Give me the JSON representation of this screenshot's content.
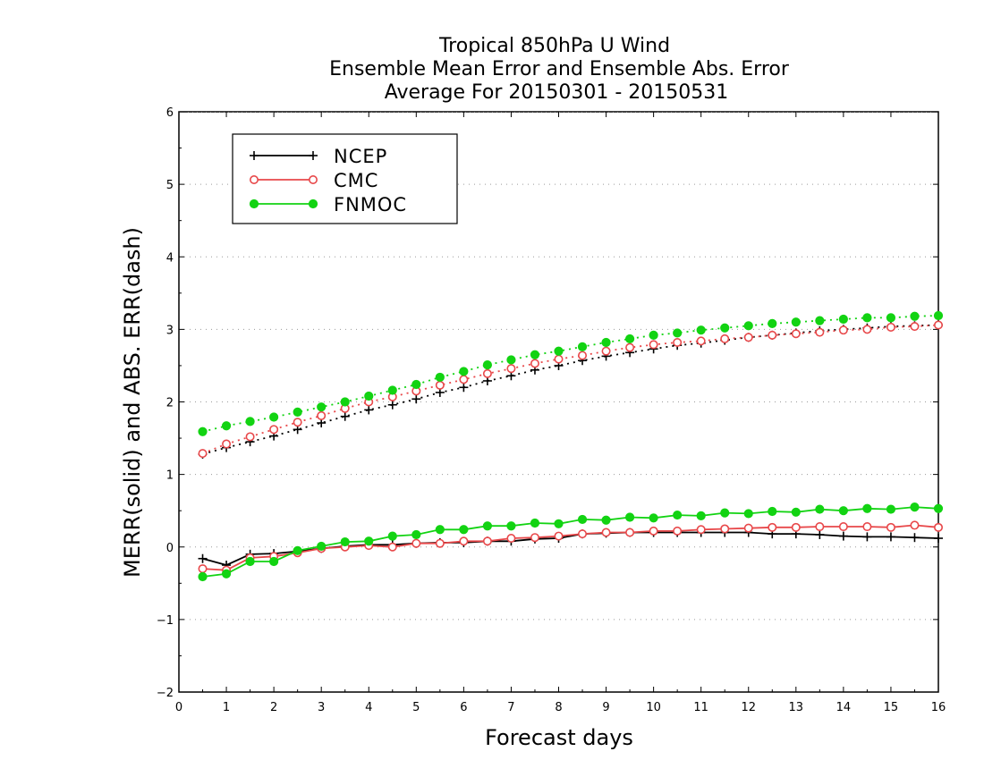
{
  "chart_data": {
    "type": "line",
    "title": [
      "Tropical 850hPa U Wind",
      "Ensemble Mean Error and Ensemble Abs. Error",
      "Average For 20150301 - 20150531"
    ],
    "xlabel": "Forecast days",
    "ylabel": "MERR(solid) and ABS. ERR(dash)",
    "xlim": [
      0,
      16
    ],
    "ylim": [
      -2,
      6
    ],
    "xticks": [
      "0",
      "1",
      "2",
      "3",
      "4",
      "5",
      "6",
      "7",
      "8",
      "9",
      "10",
      "11",
      "12",
      "13",
      "14",
      "15",
      "16"
    ],
    "yticks": [
      "−2",
      "−1",
      "0",
      "1",
      "2",
      "3",
      "4",
      "5",
      "6"
    ],
    "grid": "horizontal dotted",
    "legend_position": "top-left",
    "x": [
      0.5,
      1,
      1.5,
      2,
      2.5,
      3,
      3.5,
      4,
      4.5,
      5,
      5.5,
      6,
      6.5,
      7,
      7.5,
      8,
      8.5,
      9,
      9.5,
      10,
      10.5,
      11,
      11.5,
      12,
      12.5,
      13,
      13.5,
      14,
      14.5,
      15,
      15.5,
      16
    ],
    "series": [
      {
        "name": "NCEP",
        "color": "#000000",
        "marker": "plus",
        "merr": [
          -0.16,
          -0.25,
          -0.1,
          -0.09,
          -0.06,
          -0.02,
          0.01,
          0.03,
          0.03,
          0.05,
          0.06,
          0.06,
          0.08,
          0.08,
          0.11,
          0.12,
          0.18,
          0.19,
          0.2,
          0.2,
          0.2,
          0.2,
          0.2,
          0.2,
          0.18,
          0.18,
          0.17,
          0.15,
          0.14,
          0.14,
          0.13,
          0.12
        ],
        "abs_err": [
          1.28,
          1.37,
          1.45,
          1.53,
          1.62,
          1.71,
          1.8,
          1.89,
          1.96,
          2.04,
          2.13,
          2.2,
          2.29,
          2.36,
          2.44,
          2.5,
          2.57,
          2.63,
          2.68,
          2.73,
          2.78,
          2.81,
          2.85,
          2.89,
          2.92,
          2.95,
          2.98,
          3.0,
          3.02,
          3.04,
          3.05,
          3.06
        ]
      },
      {
        "name": "CMC",
        "color": "#e8484a",
        "marker": "open-circle",
        "merr": [
          -0.3,
          -0.32,
          -0.15,
          -0.13,
          -0.08,
          -0.02,
          0.0,
          0.02,
          0.0,
          0.05,
          0.05,
          0.08,
          0.08,
          0.12,
          0.13,
          0.15,
          0.18,
          0.2,
          0.2,
          0.22,
          0.22,
          0.24,
          0.25,
          0.26,
          0.27,
          0.27,
          0.28,
          0.28,
          0.28,
          0.27,
          0.3,
          0.27
        ],
        "abs_err": [
          1.29,
          1.42,
          1.52,
          1.62,
          1.72,
          1.81,
          1.91,
          2.0,
          2.07,
          2.15,
          2.23,
          2.31,
          2.39,
          2.46,
          2.53,
          2.59,
          2.64,
          2.7,
          2.75,
          2.79,
          2.82,
          2.84,
          2.87,
          2.89,
          2.92,
          2.94,
          2.96,
          2.99,
          3.0,
          3.03,
          3.04,
          3.06
        ]
      },
      {
        "name": "FNMOC",
        "color": "#12d312",
        "marker": "filled-circle",
        "merr": [
          -0.41,
          -0.37,
          -0.2,
          -0.2,
          -0.05,
          0.01,
          0.07,
          0.08,
          0.15,
          0.17,
          0.24,
          0.24,
          0.29,
          0.29,
          0.33,
          0.32,
          0.38,
          0.37,
          0.41,
          0.4,
          0.44,
          0.43,
          0.47,
          0.46,
          0.49,
          0.48,
          0.52,
          0.5,
          0.53,
          0.52,
          0.55,
          0.53
        ],
        "abs_err": [
          1.59,
          1.67,
          1.73,
          1.79,
          1.86,
          1.93,
          2.0,
          2.08,
          2.16,
          2.24,
          2.34,
          2.42,
          2.51,
          2.58,
          2.65,
          2.7,
          2.76,
          2.82,
          2.87,
          2.92,
          2.95,
          2.99,
          3.02,
          3.05,
          3.08,
          3.1,
          3.12,
          3.14,
          3.16,
          3.16,
          3.18,
          3.19
        ]
      }
    ]
  }
}
